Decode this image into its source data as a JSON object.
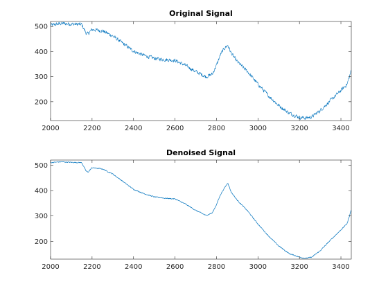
{
  "chart_data": [
    {
      "type": "line",
      "title": "Original Signal",
      "xlabel": "",
      "ylabel": "",
      "xlim": [
        2000,
        3450
      ],
      "ylim": [
        125,
        520
      ],
      "xticks": [
        2000,
        2200,
        2400,
        2600,
        2800,
        3000,
        3200,
        3400
      ],
      "yticks": [
        200,
        300,
        400,
        500
      ],
      "grid": false,
      "noise_amplitude": 10,
      "series": [
        {
          "color": "#0072BD",
          "x": [
            2000,
            2050,
            2100,
            2150,
            2170,
            2180,
            2200,
            2250,
            2300,
            2350,
            2400,
            2450,
            2500,
            2550,
            2600,
            2650,
            2700,
            2750,
            2780,
            2800,
            2820,
            2840,
            2855,
            2870,
            2900,
            2950,
            3000,
            3050,
            3100,
            3150,
            3200,
            3230,
            3260,
            3300,
            3350,
            3400,
            3430,
            3450
          ],
          "y": [
            505,
            512,
            510,
            508,
            475,
            470,
            488,
            483,
            462,
            432,
            402,
            385,
            373,
            368,
            365,
            345,
            320,
            300,
            310,
            345,
            390,
            415,
            425,
            395,
            360,
            320,
            270,
            225,
            185,
            155,
            138,
            135,
            140,
            165,
            205,
            245,
            270,
            325
          ]
        }
      ]
    },
    {
      "type": "line",
      "title": "Denoised Signal",
      "xlabel": "",
      "ylabel": "",
      "xlim": [
        2000,
        3450
      ],
      "ylim": [
        130,
        520
      ],
      "xticks": [
        2000,
        2200,
        2400,
        2600,
        2800,
        3000,
        3200,
        3400
      ],
      "yticks": [
        200,
        300,
        400,
        500
      ],
      "grid": false,
      "noise_amplitude": 2.5,
      "series": [
        {
          "color": "#0072BD",
          "x": [
            2000,
            2050,
            2100,
            2150,
            2170,
            2180,
            2200,
            2250,
            2300,
            2350,
            2400,
            2450,
            2500,
            2550,
            2600,
            2650,
            2700,
            2750,
            2780,
            2800,
            2820,
            2840,
            2855,
            2870,
            2900,
            2950,
            3000,
            3050,
            3100,
            3150,
            3200,
            3230,
            3260,
            3300,
            3350,
            3400,
            3430,
            3450
          ],
          "y": [
            510,
            513,
            511,
            510,
            478,
            472,
            490,
            485,
            465,
            435,
            405,
            388,
            375,
            370,
            367,
            347,
            322,
            302,
            312,
            345,
            385,
            412,
            430,
            395,
            362,
            320,
            268,
            222,
            182,
            152,
            138,
            133,
            138,
            163,
            205,
            245,
            270,
            325
          ]
        }
      ]
    }
  ]
}
